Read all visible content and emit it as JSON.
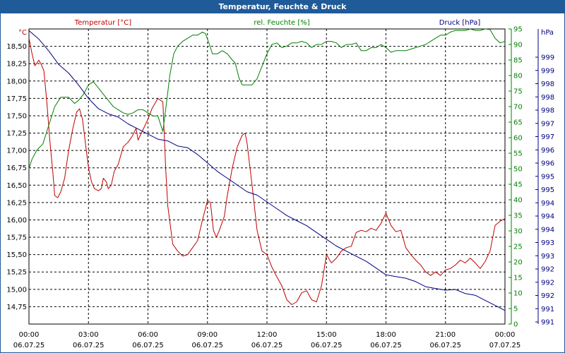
{
  "window": {
    "title": "Temperatur, Feuchte & Druck"
  },
  "chart_data": {
    "type": "line",
    "grid": true,
    "x_ticks": [
      {
        "time": "00:00",
        "date": "06.07.25"
      },
      {
        "time": "03:00",
        "date": "06.07.25"
      },
      {
        "time": "06:00",
        "date": "06.07.25"
      },
      {
        "time": "09:00",
        "date": "06.07.25"
      },
      {
        "time": "12:00",
        "date": "06.07.25"
      },
      {
        "time": "15:00",
        "date": "06.07.25"
      },
      {
        "time": "18:00",
        "date": "06.07.25"
      },
      {
        "time": "21:00",
        "date": "06.07.25"
      },
      {
        "time": "00:00",
        "date": "07.07.25"
      }
    ],
    "x_range_hours": [
      0,
      24
    ],
    "axes": {
      "temperature": {
        "label": "Temperatur [°C]",
        "unit": "°C",
        "color": "#c00000",
        "range": [
          14.5,
          18.75
        ],
        "ticks": [
          "14,75",
          "15,00",
          "15,25",
          "15,50",
          "15,75",
          "16,00",
          "16,25",
          "16,50",
          "16,75",
          "17,00",
          "17,25",
          "17,50",
          "17,75",
          "18,00",
          "18,25",
          "18,50"
        ]
      },
      "humidity": {
        "label": "rel. Feuchte [%]",
        "unit": "%",
        "color": "#008000",
        "range": [
          0,
          95
        ],
        "ticks": [
          "0",
          "5",
          "10",
          "15",
          "20",
          "25",
          "30",
          "35",
          "40",
          "45",
          "50",
          "55",
          "60",
          "65",
          "70",
          "75",
          "80",
          "85",
          "90",
          "95"
        ]
      },
      "pressure": {
        "label": "Druck [hPa]",
        "unit": "hPa",
        "color": "#000080",
        "range": [
          990.7,
          999.4
        ],
        "ticks": [
          "991",
          "991",
          "992",
          "992",
          "992",
          "993",
          "993",
          "994",
          "994",
          "994",
          "995",
          "995",
          "996",
          "996",
          "997",
          "997",
          "998",
          "998",
          "998",
          "999",
          "999"
        ]
      }
    },
    "series": [
      {
        "name": "Temperatur [°C]",
        "axis": "temperature",
        "color": "#c00000",
        "points": [
          [
            0,
            18.62
          ],
          [
            0.15,
            18.4
          ],
          [
            0.3,
            18.22
          ],
          [
            0.5,
            18.3
          ],
          [
            0.6,
            18.25
          ],
          [
            0.75,
            18.15
          ],
          [
            0.9,
            17.7
          ],
          [
            1.05,
            17.15
          ],
          [
            1.2,
            16.7
          ],
          [
            1.3,
            16.35
          ],
          [
            1.45,
            16.32
          ],
          [
            1.6,
            16.4
          ],
          [
            1.8,
            16.6
          ],
          [
            2.0,
            17.0
          ],
          [
            2.2,
            17.3
          ],
          [
            2.4,
            17.55
          ],
          [
            2.55,
            17.6
          ],
          [
            2.7,
            17.45
          ],
          [
            2.85,
            17.1
          ],
          [
            3.0,
            16.75
          ],
          [
            3.15,
            16.55
          ],
          [
            3.3,
            16.45
          ],
          [
            3.5,
            16.42
          ],
          [
            3.65,
            16.45
          ],
          [
            3.75,
            16.6
          ],
          [
            3.9,
            16.55
          ],
          [
            4.0,
            16.45
          ],
          [
            4.15,
            16.5
          ],
          [
            4.3,
            16.7
          ],
          [
            4.5,
            16.8
          ],
          [
            4.75,
            17.05
          ],
          [
            5.0,
            17.12
          ],
          [
            5.2,
            17.2
          ],
          [
            5.4,
            17.32
          ],
          [
            5.5,
            17.15
          ],
          [
            5.75,
            17.3
          ],
          [
            6.0,
            17.45
          ],
          [
            6.2,
            17.6
          ],
          [
            6.5,
            17.75
          ],
          [
            6.75,
            17.7
          ],
          [
            6.9,
            16.7
          ],
          [
            7.0,
            16.2
          ],
          [
            7.25,
            15.65
          ],
          [
            7.5,
            15.55
          ],
          [
            7.75,
            15.48
          ],
          [
            8.0,
            15.5
          ],
          [
            8.25,
            15.6
          ],
          [
            8.5,
            15.7
          ],
          [
            8.75,
            16.0
          ],
          [
            9.0,
            16.28
          ],
          [
            9.15,
            16.25
          ],
          [
            9.3,
            15.85
          ],
          [
            9.45,
            15.75
          ],
          [
            9.6,
            15.85
          ],
          [
            9.85,
            16.05
          ],
          [
            10.0,
            16.35
          ],
          [
            10.25,
            16.75
          ],
          [
            10.5,
            17.05
          ],
          [
            10.75,
            17.22
          ],
          [
            10.9,
            17.25
          ],
          [
            11.0,
            17.1
          ],
          [
            11.25,
            16.5
          ],
          [
            11.5,
            15.85
          ],
          [
            11.75,
            15.55
          ],
          [
            12.0,
            15.5
          ],
          [
            12.25,
            15.32
          ],
          [
            12.5,
            15.18
          ],
          [
            12.75,
            15.05
          ],
          [
            13.0,
            14.85
          ],
          [
            13.25,
            14.78
          ],
          [
            13.5,
            14.82
          ],
          [
            13.75,
            14.95
          ],
          [
            14.0,
            14.98
          ],
          [
            14.25,
            14.85
          ],
          [
            14.5,
            14.82
          ],
          [
            14.75,
            15.05
          ],
          [
            15.0,
            15.5
          ],
          [
            15.25,
            15.38
          ],
          [
            15.5,
            15.45
          ],
          [
            15.75,
            15.55
          ],
          [
            16.0,
            15.6
          ],
          [
            16.25,
            15.62
          ],
          [
            16.5,
            15.82
          ],
          [
            16.75,
            15.85
          ],
          [
            17.0,
            15.83
          ],
          [
            17.25,
            15.88
          ],
          [
            17.5,
            15.85
          ],
          [
            17.75,
            15.95
          ],
          [
            18.0,
            16.1
          ],
          [
            18.25,
            15.92
          ],
          [
            18.5,
            15.83
          ],
          [
            18.75,
            15.85
          ],
          [
            19.0,
            15.6
          ],
          [
            19.25,
            15.5
          ],
          [
            19.5,
            15.42
          ],
          [
            19.75,
            15.35
          ],
          [
            20.0,
            15.25
          ],
          [
            20.25,
            15.2
          ],
          [
            20.5,
            15.25
          ],
          [
            20.75,
            15.2
          ],
          [
            21.0,
            15.28
          ],
          [
            21.25,
            15.3
          ],
          [
            21.5,
            15.35
          ],
          [
            21.75,
            15.42
          ],
          [
            22.0,
            15.38
          ],
          [
            22.25,
            15.45
          ],
          [
            22.5,
            15.38
          ],
          [
            22.75,
            15.3
          ],
          [
            23.0,
            15.4
          ],
          [
            23.25,
            15.55
          ],
          [
            23.5,
            15.92
          ],
          [
            23.75,
            15.98
          ],
          [
            24.0,
            16.02
          ]
        ]
      },
      {
        "name": "rel. Feuchte [%]",
        "axis": "humidity",
        "color": "#008000",
        "points": [
          [
            0,
            50
          ],
          [
            0.15,
            53
          ],
          [
            0.4,
            56
          ],
          [
            0.7,
            58
          ],
          [
            1.0,
            64
          ],
          [
            1.3,
            70
          ],
          [
            1.6,
            73
          ],
          [
            2.0,
            73
          ],
          [
            2.3,
            71
          ],
          [
            2.5,
            72
          ],
          [
            2.75,
            74
          ],
          [
            3.0,
            77
          ],
          [
            3.25,
            78
          ],
          [
            3.5,
            76
          ],
          [
            3.75,
            74
          ],
          [
            4.0,
            72
          ],
          [
            4.25,
            70
          ],
          [
            4.5,
            69
          ],
          [
            4.75,
            68
          ],
          [
            5.0,
            67.5
          ],
          [
            5.25,
            68
          ],
          [
            5.5,
            69
          ],
          [
            5.75,
            69
          ],
          [
            6.0,
            68
          ],
          [
            6.25,
            67
          ],
          [
            6.5,
            67
          ],
          [
            6.75,
            62
          ],
          [
            6.95,
            72
          ],
          [
            7.1,
            80
          ],
          [
            7.3,
            87
          ],
          [
            7.5,
            89.5
          ],
          [
            7.75,
            91
          ],
          [
            8.0,
            92
          ],
          [
            8.25,
            93
          ],
          [
            8.5,
            93
          ],
          [
            8.75,
            94
          ],
          [
            8.9,
            93.5
          ],
          [
            9.1,
            90
          ],
          [
            9.25,
            87
          ],
          [
            9.5,
            87
          ],
          [
            9.75,
            88
          ],
          [
            10.0,
            87
          ],
          [
            10.25,
            85
          ],
          [
            10.4,
            84
          ],
          [
            10.6,
            79
          ],
          [
            10.75,
            77
          ],
          [
            11.0,
            77
          ],
          [
            11.25,
            77
          ],
          [
            11.5,
            79
          ],
          [
            11.75,
            83
          ],
          [
            12.0,
            87
          ],
          [
            12.25,
            90
          ],
          [
            12.5,
            90.5
          ],
          [
            12.75,
            89
          ],
          [
            13.0,
            89.5
          ],
          [
            13.25,
            90.5
          ],
          [
            13.5,
            90.5
          ],
          [
            13.75,
            91
          ],
          [
            14.0,
            90.5
          ],
          [
            14.25,
            89
          ],
          [
            14.5,
            90
          ],
          [
            14.75,
            90
          ],
          [
            15.0,
            91
          ],
          [
            15.25,
            91
          ],
          [
            15.5,
            90.5
          ],
          [
            15.75,
            89
          ],
          [
            16.0,
            90
          ],
          [
            16.25,
            90
          ],
          [
            16.5,
            90.5
          ],
          [
            16.75,
            88
          ],
          [
            17.0,
            88
          ],
          [
            17.25,
            89
          ],
          [
            17.5,
            89
          ],
          [
            17.75,
            90
          ],
          [
            18.0,
            89
          ],
          [
            18.25,
            87.5
          ],
          [
            18.5,
            88
          ],
          [
            18.75,
            88
          ],
          [
            19.0,
            88
          ],
          [
            19.25,
            88.5
          ],
          [
            19.5,
            89
          ],
          [
            19.75,
            89.5
          ],
          [
            20.0,
            90
          ],
          [
            20.25,
            91
          ],
          [
            20.5,
            92
          ],
          [
            20.75,
            93
          ],
          [
            21.0,
            93
          ],
          [
            21.25,
            94
          ],
          [
            21.5,
            94.5
          ],
          [
            21.75,
            94.5
          ],
          [
            22.0,
            94.5
          ],
          [
            22.25,
            95
          ],
          [
            22.5,
            94.5
          ],
          [
            22.75,
            94.5
          ],
          [
            23.0,
            95
          ],
          [
            23.25,
            94.8
          ],
          [
            23.5,
            92
          ],
          [
            23.75,
            90.5
          ],
          [
            24.0,
            91
          ]
        ]
      },
      {
        "name": "Druck [hPa]",
        "axis": "pressure",
        "color": "#000080",
        "points": [
          [
            0,
            999.35
          ],
          [
            0.5,
            999.1
          ],
          [
            1.0,
            998.75
          ],
          [
            1.5,
            998.35
          ],
          [
            2.0,
            998.1
          ],
          [
            2.5,
            997.75
          ],
          [
            3.0,
            997.35
          ],
          [
            3.5,
            997.05
          ],
          [
            4.0,
            996.9
          ],
          [
            4.5,
            996.8
          ],
          [
            5.0,
            996.6
          ],
          [
            5.5,
            996.45
          ],
          [
            6.0,
            996.3
          ],
          [
            6.5,
            996.15
          ],
          [
            7.0,
            996.1
          ],
          [
            7.5,
            995.95
          ],
          [
            8.0,
            995.9
          ],
          [
            8.5,
            995.7
          ],
          [
            9.0,
            995.45
          ],
          [
            9.5,
            995.2
          ],
          [
            10.0,
            995.0
          ],
          [
            10.5,
            994.8
          ],
          [
            11.0,
            994.6
          ],
          [
            11.5,
            994.5
          ],
          [
            12.0,
            994.3
          ],
          [
            12.5,
            994.1
          ],
          [
            13.0,
            993.9
          ],
          [
            13.5,
            993.75
          ],
          [
            14.0,
            993.6
          ],
          [
            14.5,
            993.4
          ],
          [
            15.0,
            993.2
          ],
          [
            15.5,
            993.0
          ],
          [
            16.0,
            992.85
          ],
          [
            16.5,
            992.7
          ],
          [
            17.0,
            992.55
          ],
          [
            17.5,
            992.35
          ],
          [
            18.0,
            992.15
          ],
          [
            18.5,
            992.1
          ],
          [
            19.0,
            992.05
          ],
          [
            19.5,
            991.95
          ],
          [
            20.0,
            991.8
          ],
          [
            20.5,
            991.75
          ],
          [
            21.0,
            991.7
          ],
          [
            21.5,
            991.72
          ],
          [
            22.0,
            991.6
          ],
          [
            22.5,
            991.55
          ],
          [
            23.0,
            991.4
          ],
          [
            23.5,
            991.25
          ],
          [
            24.0,
            991.1
          ]
        ]
      }
    ]
  }
}
